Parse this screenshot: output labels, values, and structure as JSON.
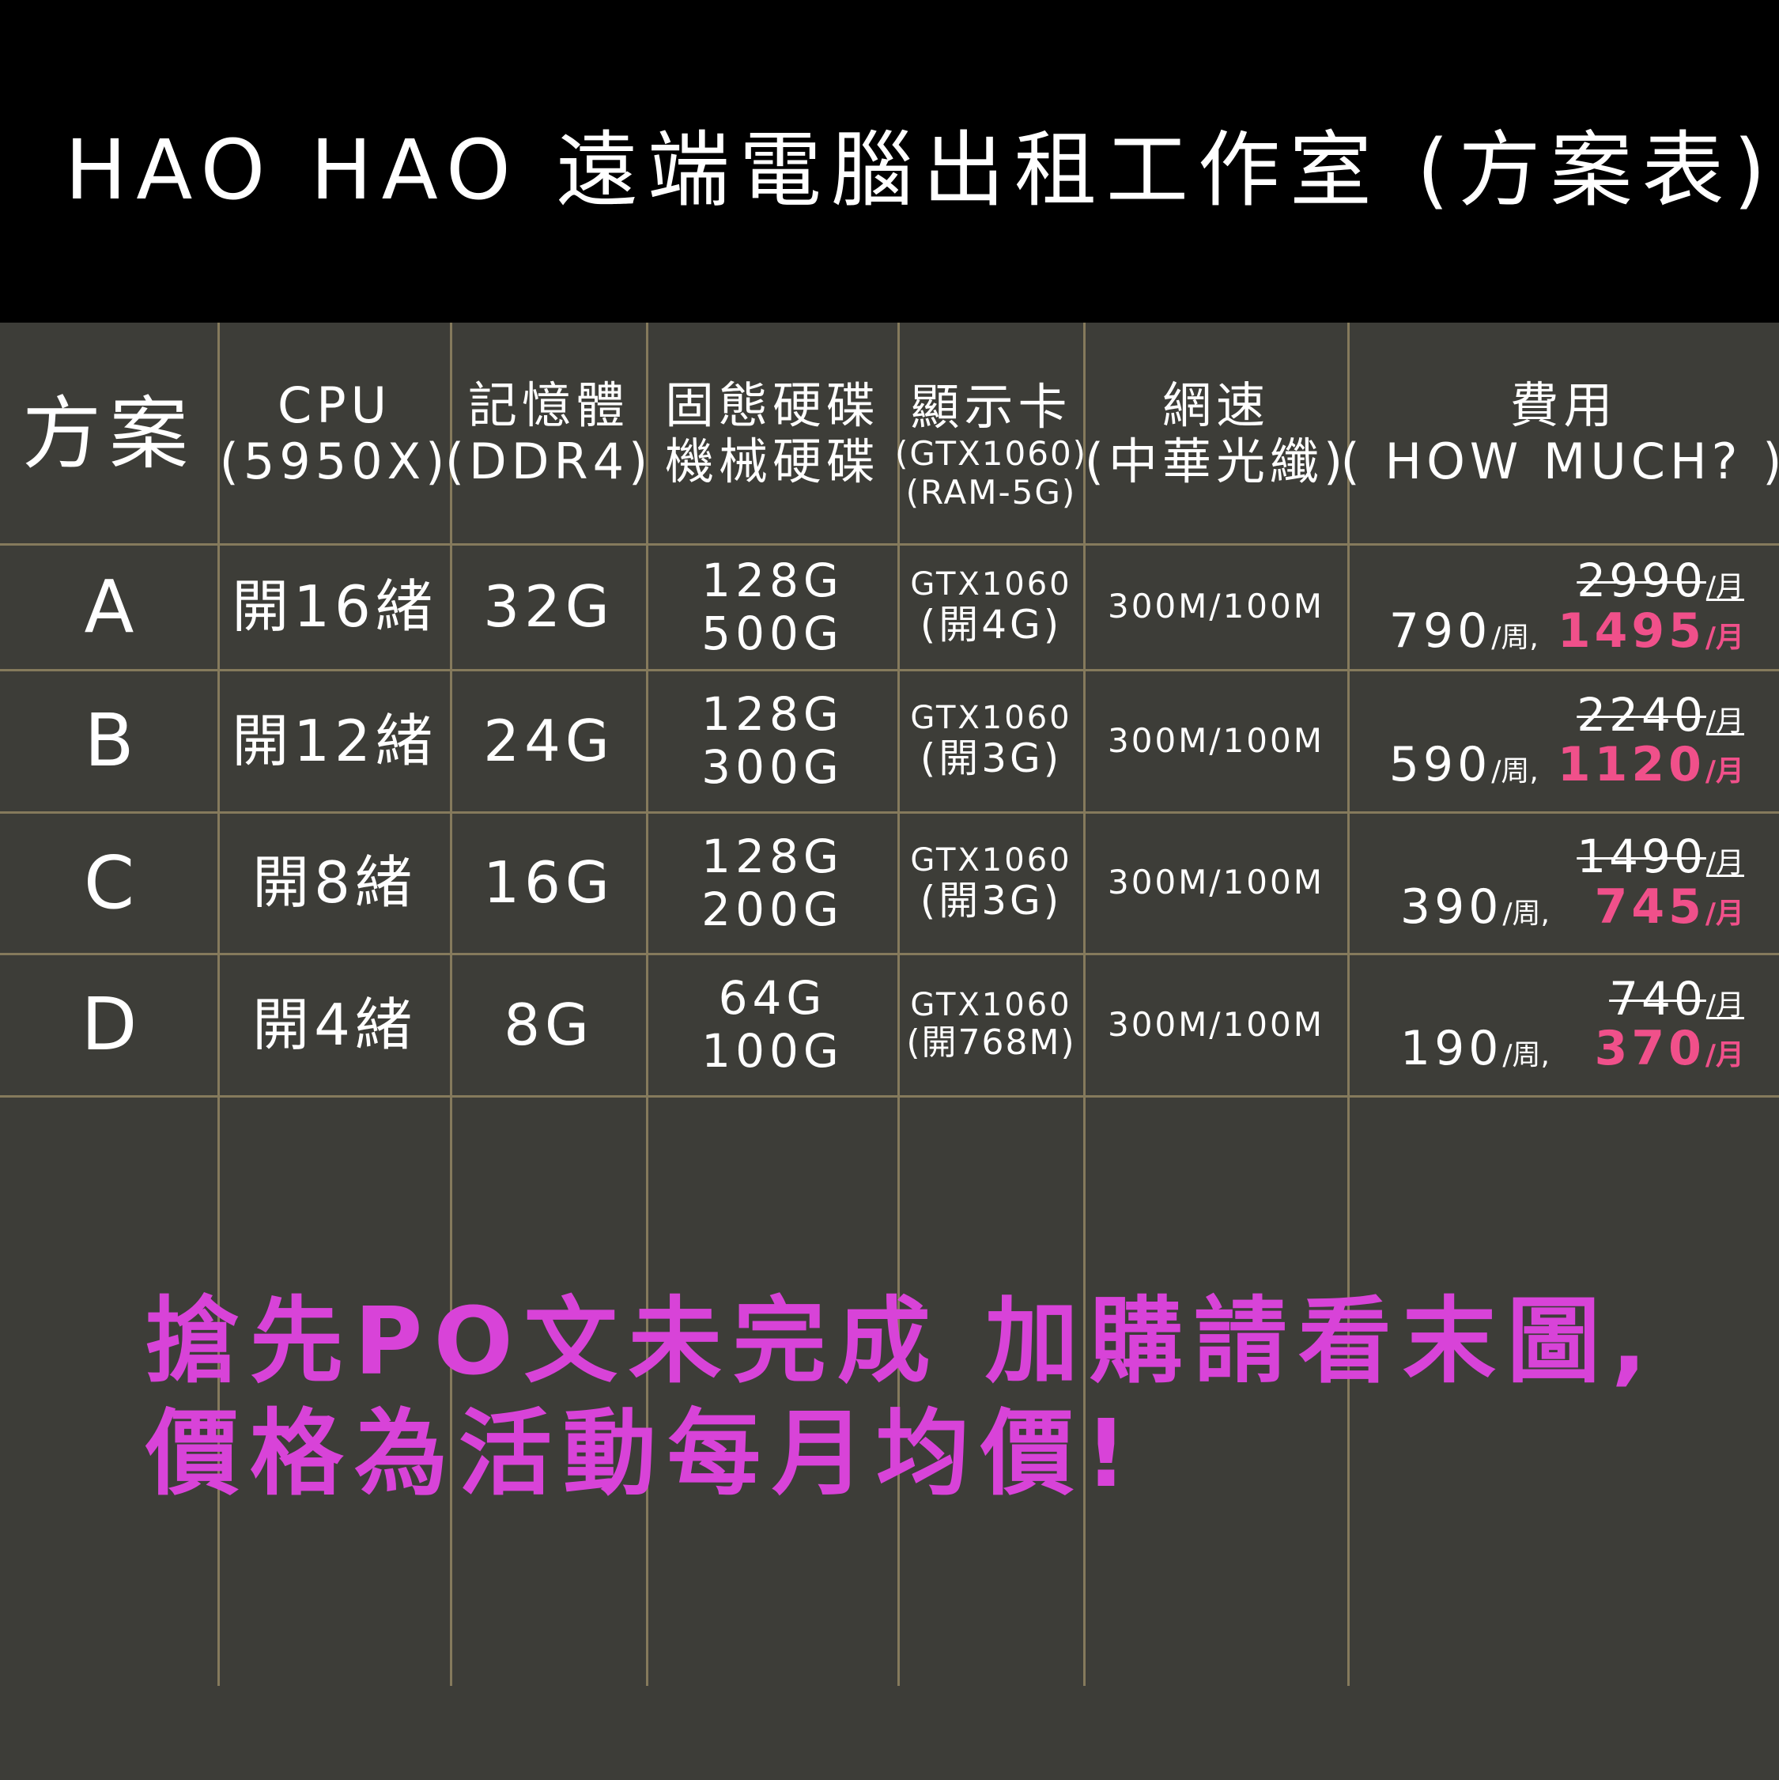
{
  "title": "HAO HAO 遠端電腦出租工作室 (方案表)",
  "colors": {
    "header_bg": "#000000",
    "table_bg": "#3d3d38",
    "grid": "#857a5c",
    "price_accent": "#f0508a",
    "promo": "#d843d8"
  },
  "headers": {
    "plan": "方案",
    "cpu": [
      "CPU",
      "(5950X)"
    ],
    "ram": [
      "記憶體",
      "(DDR4)"
    ],
    "disk": [
      "固態硬碟",
      "機械硬碟"
    ],
    "gpu": [
      "顯示卡",
      "(GTX1060)",
      "(RAM-5G)"
    ],
    "net": [
      "網速",
      "(中華光纖)"
    ],
    "price": [
      "費用",
      "( HOW MUCH? )"
    ]
  },
  "rows": [
    {
      "plan": "A",
      "cpu": "開16緒",
      "ram": "32G",
      "ssd": "128G",
      "hdd": "500G",
      "gpu": "GTX1060",
      "vram": "(開4G)",
      "net": "300M/100M",
      "old": "2990",
      "old_unit": "/月",
      "week": "790",
      "week_unit": "/周,",
      "month": "1495",
      "month_unit": "/月"
    },
    {
      "plan": "B",
      "cpu": "開12緒",
      "ram": "24G",
      "ssd": "128G",
      "hdd": "300G",
      "gpu": "GTX1060",
      "vram": "(開3G)",
      "net": "300M/100M",
      "old": "2240",
      "old_unit": "/月",
      "week": "590",
      "week_unit": "/周,",
      "month": "1120",
      "month_unit": "/月"
    },
    {
      "plan": "C",
      "cpu": "開8緒",
      "ram": "16G",
      "ssd": "128G",
      "hdd": "200G",
      "gpu": "GTX1060",
      "vram": "(開3G)",
      "net": "300M/100M",
      "old": "1490",
      "old_unit": "/月",
      "week": "390",
      "week_unit": "/周,",
      "month": "745",
      "month_unit": "/月"
    },
    {
      "plan": "D",
      "cpu": "開4緒",
      "ram": "8G",
      "ssd": "64G",
      "hdd": "100G",
      "gpu": "GTX1060",
      "vram": "(開768M)",
      "net": "300M/100M",
      "old": "740",
      "old_unit": "/月",
      "week": "190",
      "week_unit": "/周,",
      "month": "370",
      "month_unit": "/月"
    }
  ],
  "promo": [
    "搶先PO文未完成 加購請看末圖,",
    "價格為活動每月均價!"
  ]
}
